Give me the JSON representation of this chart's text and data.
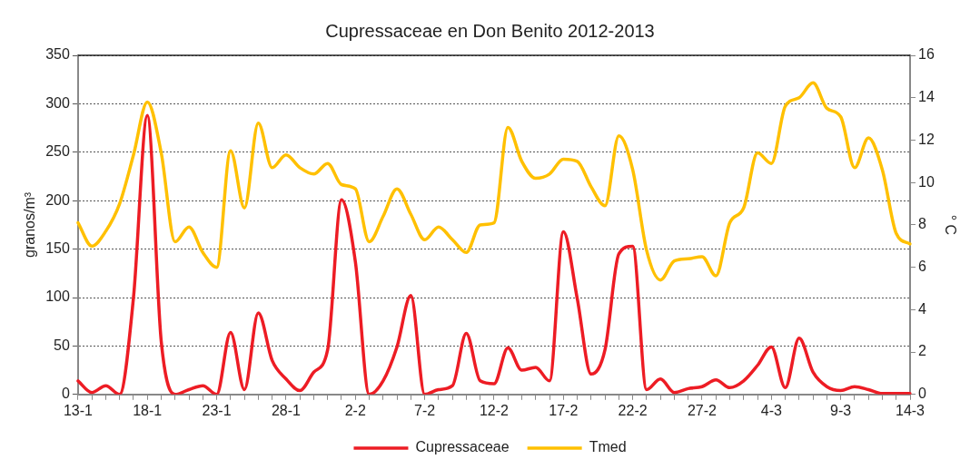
{
  "chart_data": {
    "type": "line",
    "title": "Cupressaceae en Don Benito 2012-2013",
    "ylabel": "granos/m³",
    "y2label": "° C",
    "categories": [
      "13-1",
      null,
      null,
      null,
      null,
      "18-1",
      null,
      null,
      null,
      null,
      "23-1",
      null,
      null,
      null,
      null,
      "28-1",
      null,
      null,
      null,
      null,
      "2-2",
      null,
      null,
      null,
      null,
      "7-2",
      null,
      null,
      null,
      null,
      "12-2",
      null,
      null,
      null,
      null,
      "17-2",
      null,
      null,
      null,
      null,
      "22-2",
      null,
      null,
      null,
      null,
      "27-2",
      null,
      null,
      null,
      null,
      "4-3",
      null,
      null,
      null,
      null,
      "9-3",
      null,
      null,
      null,
      null,
      "14-3"
    ],
    "series": [
      {
        "name": "Cupressaceae",
        "color": "#ed1c24",
        "values": [
          14,
          2,
          9,
          0,
          100,
          288,
          55,
          0,
          5,
          9,
          0,
          64,
          5,
          84,
          35,
          16,
          4,
          23,
          46,
          201,
          137,
          0,
          14,
          49,
          102,
          0,
          5,
          9,
          63,
          14,
          11,
          48,
          25,
          28,
          14,
          168,
          99,
          21,
          46,
          145,
          153,
          5,
          16,
          2,
          6,
          8,
          15,
          7,
          14,
          30,
          49,
          7,
          58,
          23,
          8,
          4,
          8,
          5,
          1,
          1,
          1
        ]
      },
      {
        "name": "Tmed",
        "color": "#ffc000",
        "axis": "y2",
        "values": [
          8.1,
          7.0,
          7.7,
          9.0,
          11.3,
          13.8,
          11.4,
          7.2,
          7.9,
          6.7,
          6.0,
          11.5,
          8.8,
          12.8,
          10.7,
          11.3,
          10.7,
          10.4,
          10.9,
          9.9,
          9.7,
          7.2,
          8.4,
          9.7,
          8.5,
          7.3,
          7.9,
          7.3,
          6.7,
          8.0,
          8.1,
          12.6,
          11.0,
          10.2,
          10.4,
          11.1,
          11.0,
          9.8,
          8.9,
          12.2,
          10.6,
          6.8,
          5.4,
          6.3,
          6.4,
          6.5,
          5.6,
          8.1,
          8.8,
          11.4,
          10.9,
          13.6,
          14.0,
          14.7,
          13.5,
          13.1,
          10.7,
          12.1,
          10.6,
          7.6,
          7.1
        ]
      }
    ],
    "ylim": [
      0,
      350
    ],
    "yticks": [
      0,
      50,
      100,
      150,
      200,
      250,
      300,
      350
    ],
    "y2lim": [
      0,
      16
    ],
    "y2ticks": [
      0,
      2,
      4,
      6,
      8,
      10,
      12,
      14,
      16
    ],
    "grid": "y",
    "legend": "bottom",
    "marker": "none",
    "line_style": "solid"
  }
}
